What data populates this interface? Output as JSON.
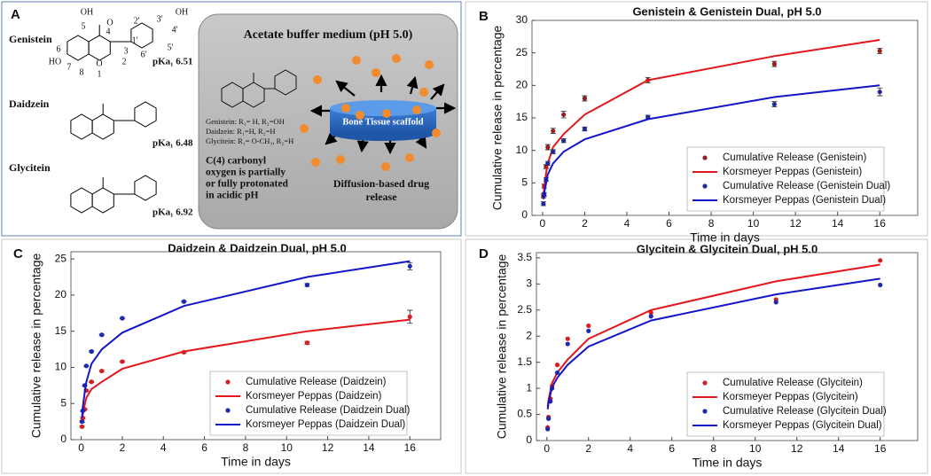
{
  "panel_a": {
    "label": "A",
    "compounds": [
      {
        "name": "Genistein",
        "pka": "pKa₁ 6.51"
      },
      {
        "name": "Daidzein",
        "pka": "pKa₁ 6.48"
      },
      {
        "name": "Glycitein",
        "pka": "pKa₁ 6.92"
      }
    ],
    "atom_labels": [
      "5",
      "4",
      "3",
      "2",
      "1",
      "8",
      "7",
      "6",
      "2'",
      "3'",
      "4'",
      "1'",
      "5'",
      "6'",
      "OH",
      "OH",
      "HO",
      "O",
      "O"
    ],
    "box": {
      "title": "Acetate buffer medium (pH 5.0)",
      "scaffold": "Bone Tissue scaffold",
      "substituents": [
        "Genistein: R₁= H, R₂=OH",
        "Daidzein: R₁=H, R₂=H",
        "Glycitein: R₁= O-CH₃, R₂=H"
      ],
      "note_lines": [
        "C(4) carbonyl",
        "oxygen is partially",
        "or fully protonated",
        "in acidic pH"
      ],
      "release_lines": [
        "Diffusion-based drug",
        "release"
      ]
    }
  },
  "chart_data": [
    {
      "panel": "B",
      "type": "line",
      "title": "Genistein & Genistein Dual, pH 5.0",
      "x_label": "Time in days",
      "y_label": "Cumulative release in percentage",
      "x": [
        0.04,
        0.08,
        0.17,
        0.25,
        0.5,
        1,
        2,
        5,
        11,
        16
      ],
      "xlim": [
        -0.5,
        17.8
      ],
      "xticks": [
        0,
        2,
        4,
        6,
        8,
        10,
        12,
        14,
        16
      ],
      "ylim": [
        0,
        30
      ],
      "yticks": [
        0,
        5,
        10,
        15,
        20,
        25,
        30
      ],
      "legend": "lower right",
      "series": [
        {
          "name": "Cumulative Release (Genistein)",
          "style": "points",
          "color": "#9b1c1c",
          "values": [
            3,
            4.5,
            7.5,
            10.5,
            13,
            15.5,
            18,
            20.8,
            23.3,
            25.3
          ],
          "errors": [
            0.3,
            0.3,
            0.3,
            0.4,
            0.4,
            0.5,
            0.4,
            0.4,
            0.4,
            0.4
          ]
        },
        {
          "name": "Korsmeyer Peppas (Genistein)",
          "style": "line",
          "color": "#e3161b",
          "values": [
            3,
            4.2,
            6.5,
            8,
            10.5,
            12.5,
            15.5,
            20.8,
            24.5,
            27
          ]
        },
        {
          "name": "Cumulative Release (Genistein Dual)",
          "style": "points",
          "color": "#1c2a9b",
          "values": [
            1.8,
            3.2,
            5.5,
            8,
            9.8,
            11.5,
            13.3,
            15.1,
            17.1,
            19
          ],
          "errors": [
            0.3,
            0.3,
            0.3,
            0.3,
            0.3,
            0.3,
            0.3,
            0.3,
            0.4,
            0.6
          ]
        },
        {
          "name": "Korsmeyer Peppas (Genistein Dual)",
          "style": "line",
          "color": "#1414c8",
          "values": [
            2.5,
            3.5,
            5,
            6.3,
            8,
            9.8,
            11.7,
            14.8,
            18.2,
            20
          ]
        }
      ]
    },
    {
      "panel": "C",
      "type": "line",
      "title": "Daidzein & Daidzein Dual, pH 5.0",
      "x_label": "Time in days",
      "y_label": "Cumulative release in percentage",
      "x": [
        0.04,
        0.08,
        0.17,
        0.25,
        0.5,
        1,
        2,
        5,
        11,
        16
      ],
      "xlim": [
        -0.5,
        17.5
      ],
      "xticks": [
        0,
        2,
        4,
        6,
        8,
        10,
        12,
        14,
        16
      ],
      "ylim": [
        0,
        26
      ],
      "yticks": [
        0,
        5,
        10,
        15,
        20,
        25
      ],
      "legend": "lower right",
      "series": [
        {
          "name": "Cumulative Release (Daidzein)",
          "style": "points",
          "color": "#d61f1f",
          "values": [
            1.8,
            3,
            4.2,
            6.8,
            8,
            9.5,
            10.8,
            12.1,
            13.4,
            17
          ],
          "errors": [
            0.1,
            0.1,
            0.1,
            0.1,
            0.1,
            0.1,
            0.1,
            0.1,
            0.2,
            0.9
          ]
        },
        {
          "name": "Korsmeyer Peppas (Daidzein)",
          "style": "line",
          "color": "#e3161b",
          "values": [
            2.5,
            3.5,
            4.8,
            5.8,
            7,
            8,
            9.8,
            12.2,
            15,
            16.6
          ]
        },
        {
          "name": "Cumulative Release (Daidzein Dual)",
          "style": "points",
          "color": "#1c2ab0",
          "values": [
            2.5,
            4,
            7.5,
            10.2,
            12.2,
            14.5,
            16.8,
            19.1,
            21.4,
            24
          ],
          "errors": [
            0.1,
            0.1,
            0.1,
            0.1,
            0.1,
            0.1,
            0.1,
            0.1,
            0.2,
            0.5
          ]
        },
        {
          "name": "Korsmeyer Peppas (Daidzein Dual)",
          "style": "line",
          "color": "#1414c8",
          "values": [
            3,
            4.5,
            6.5,
            8,
            10.5,
            12.5,
            14.8,
            18.5,
            22.5,
            24.7
          ]
        }
      ]
    },
    {
      "panel": "D",
      "type": "line",
      "title": "Glycitein & Glycitein Dual, pH 5.0",
      "x_label": "Time in days",
      "y_label": "Cumulative release in percentage",
      "x": [
        0.04,
        0.08,
        0.17,
        0.25,
        0.5,
        1,
        2,
        5,
        11,
        16
      ],
      "xlim": [
        -0.5,
        17.8
      ],
      "xticks": [
        0,
        2,
        4,
        6,
        8,
        10,
        12,
        14,
        16
      ],
      "ylim": [
        0,
        3.6
      ],
      "yticks": [
        0,
        0.5,
        1,
        1.5,
        2,
        2.5,
        3,
        3.5
      ],
      "legend": "lower right",
      "series": [
        {
          "name": "Cumulative Release (Glycitein)",
          "style": "points",
          "color": "#d61f1f",
          "values": [
            0.25,
            0.45,
            0.8,
            1.05,
            1.45,
            1.95,
            2.2,
            2.45,
            2.7,
            3.45
          ]
        },
        {
          "name": "Korsmeyer Peppas (Glycitein)",
          "style": "line",
          "color": "#e3161b",
          "values": [
            0.65,
            0.78,
            0.95,
            1.1,
            1.3,
            1.55,
            1.95,
            2.5,
            3.05,
            3.37
          ]
        },
        {
          "name": "Cumulative Release (Glycitein Dual)",
          "style": "points",
          "color": "#1c2ab0",
          "values": [
            0.22,
            0.42,
            0.75,
            1,
            1.3,
            1.85,
            2.1,
            2.38,
            2.65,
            2.98
          ]
        },
        {
          "name": "Korsmeyer Peppas (Glycitein Dual)",
          "style": "line",
          "color": "#1414c8",
          "values": [
            0.6,
            0.72,
            0.88,
            1.02,
            1.2,
            1.45,
            1.8,
            2.3,
            2.8,
            3.1
          ]
        }
      ]
    }
  ]
}
